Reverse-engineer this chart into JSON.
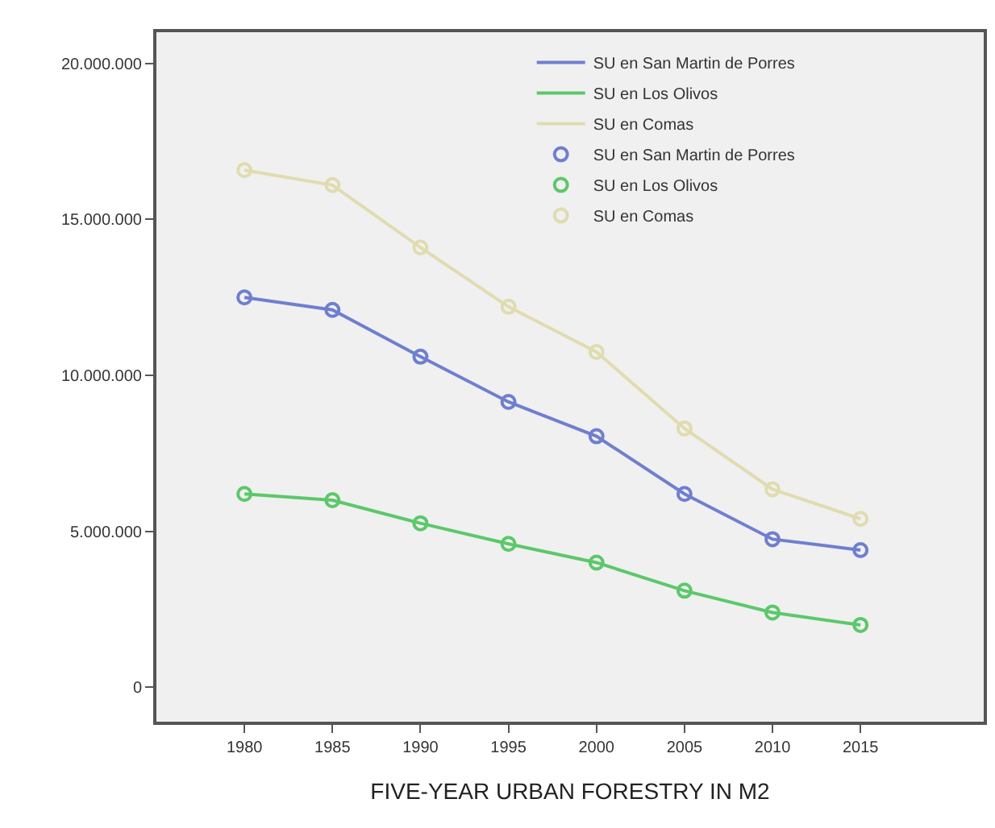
{
  "chart_data": {
    "type": "line",
    "title": "FIVE-YEAR URBAN FORESTRY IN M2",
    "x": [
      1980,
      1985,
      1990,
      1995,
      2000,
      2005,
      2010,
      2015
    ],
    "series": [
      {
        "name": "SU en San Martin de Porres",
        "marker": "none",
        "color": "#6f7fcf",
        "values": [
          12500000,
          12100000,
          10600000,
          9150000,
          8050000,
          6200000,
          4750000,
          4400000
        ]
      },
      {
        "name": "SU en Los Olivos",
        "marker": "none",
        "color": "#5cc86a",
        "values": [
          6200000,
          6000000,
          5260000,
          4600000,
          4000000,
          3100000,
          2400000,
          2000000
        ]
      },
      {
        "name": "SU en Comas",
        "marker": "none",
        "color": "#e0dcb0",
        "values": [
          16580000,
          16100000,
          14100000,
          12200000,
          10750000,
          8300000,
          6350000,
          5400000
        ]
      },
      {
        "name": "SU en San Martin de Porres",
        "type": "scatter",
        "color": "#6f7fcf",
        "values": [
          12500000,
          12100000,
          10600000,
          9150000,
          8050000,
          6200000,
          4750000,
          4400000
        ]
      },
      {
        "name": "SU en Los Olivos",
        "type": "scatter",
        "color": "#5cc86a",
        "values": [
          6200000,
          6000000,
          5260000,
          4600000,
          4000000,
          3100000,
          2400000,
          2000000
        ]
      },
      {
        "name": "SU en Comas",
        "type": "scatter",
        "color": "#e0dcb0",
        "values": [
          16580000,
          16100000,
          14100000,
          12200000,
          10750000,
          8300000,
          6350000,
          5400000
        ]
      }
    ],
    "marker": "circle",
    "xlim": [
      1975,
      2022
    ],
    "xticks": [
      1980,
      1985,
      1990,
      1995,
      2000,
      2005,
      2010,
      2015
    ],
    "ylim": [
      -1100000,
      21000000
    ],
    "yticks": [
      {
        "value": 0,
        "label": "0"
      },
      {
        "value": 5000000,
        "label": "5.000.000"
      },
      {
        "value": 10000000,
        "label": "10.000.000"
      },
      {
        "value": 15000000,
        "label": "15.000.000"
      },
      {
        "value": 20000000,
        "label": "20.000.000"
      }
    ],
    "grid": false,
    "legend": "top right"
  }
}
